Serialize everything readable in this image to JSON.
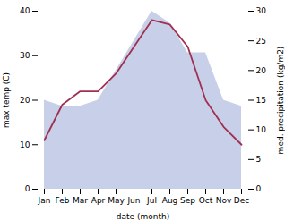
{
  "chart_data": {
    "type": "line",
    "categories": [
      "Jan",
      "Feb",
      "Mar",
      "Apr",
      "May",
      "Jun",
      "Jul",
      "Aug",
      "Sep",
      "Oct",
      "Nov",
      "Dec"
    ],
    "series": [
      {
        "type": "area",
        "color": "#c8cfe8",
        "axis": "y2",
        "values": [
          15,
          14,
          14,
          15,
          20,
          25,
          30,
          28,
          23,
          23,
          15,
          14
        ]
      },
      {
        "type": "line",
        "color": "#a03050",
        "values": [
          11,
          19,
          22,
          22,
          26,
          32,
          38,
          37,
          32,
          20,
          14,
          10
        ]
      }
    ],
    "xlabel": "date (month)",
    "ylabel": "max temp (C)",
    "y2label": "med. precipitation (kg/m2)",
    "ylim": [
      0,
      40
    ],
    "yticks": [
      0,
      10,
      20,
      30,
      40
    ],
    "y2lim": [
      0,
      30
    ],
    "y2ticks": [
      0,
      5,
      10,
      15,
      20,
      25,
      30
    ],
    "grid": false
  }
}
